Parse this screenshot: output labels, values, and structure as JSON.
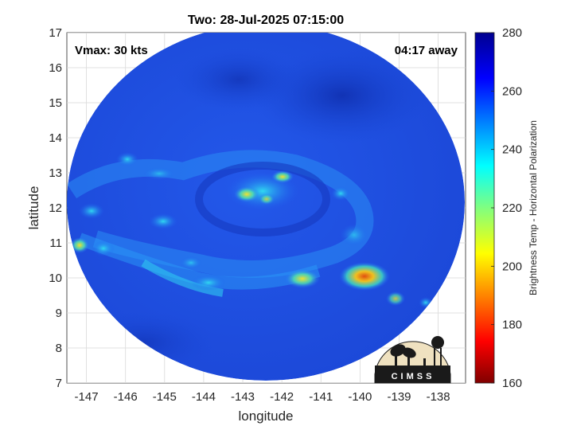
{
  "title": "Two: 28-Jul-2025 07:15:00",
  "annotations": {
    "vmax": "Vmax: 30 kts",
    "away": "04:17 away"
  },
  "axes": {
    "xlabel": "longitude",
    "ylabel": "latitude",
    "xlim": [
      -147.5,
      -137.3
    ],
    "ylim": [
      7,
      17
    ],
    "xticks": [
      "-147",
      "-146",
      "-145",
      "-144",
      "-143",
      "-142",
      "-141",
      "-140",
      "-139",
      "-138"
    ],
    "xtick_values": [
      -147,
      -146,
      -145,
      -144,
      -143,
      -142,
      -141,
      -140,
      -139,
      -138
    ],
    "yticks": [
      "7",
      "8",
      "9",
      "10",
      "11",
      "12",
      "13",
      "14",
      "15",
      "16",
      "17"
    ],
    "ytick_values": [
      7,
      8,
      9,
      10,
      11,
      12,
      13,
      14,
      15,
      16,
      17
    ],
    "grid": true
  },
  "colorbar": {
    "label": "Brightness Temp - Horizontal Polarization",
    "ticks": [
      "160",
      "180",
      "200",
      "220",
      "240",
      "260",
      "280"
    ],
    "tick_values": [
      160,
      180,
      200,
      220,
      240,
      260,
      280
    ],
    "range": [
      160,
      280
    ],
    "colormap": "jet"
  },
  "logo": {
    "text": "CIMSS"
  },
  "colors": {
    "background_field": "#1f4fe0",
    "warm_core": "#f0e020",
    "hot_spot": "#e86010"
  }
}
